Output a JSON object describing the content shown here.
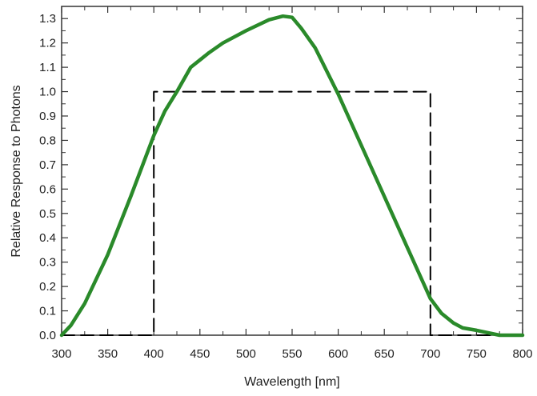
{
  "chart_data": {
    "type": "line",
    "title": "",
    "xlabel": "Wavelength [nm]",
    "ylabel": "Relative Response to Photons",
    "xlim": [
      300,
      800
    ],
    "ylim": [
      0,
      1.35
    ],
    "xticks": [
      300,
      350,
      400,
      450,
      500,
      550,
      600,
      650,
      700,
      750,
      800
    ],
    "xtick_labels": [
      "300",
      "350",
      "400",
      "450",
      "500",
      "550",
      "600",
      "650",
      "700",
      "750",
      "800"
    ],
    "yticks": [
      0,
      0.1,
      0.2,
      0.3,
      0.4,
      0.5,
      0.6,
      0.7,
      0.8,
      0.9,
      1.0,
      1.1,
      1.2,
      1.3
    ],
    "ytick_labels": [
      "0.0",
      "0.1",
      "0.2",
      "0.3",
      "0.4",
      "0.5",
      "0.6",
      "0.7",
      "0.8",
      "0.9",
      "1.0",
      "1.1",
      "1.2",
      "1.3"
    ],
    "grid": false,
    "series": [
      {
        "style": "solid",
        "color": "#2a8a2a",
        "x": [
          300,
          310,
          325,
          350,
          375,
          400,
          412,
          425,
          440,
          460,
          475,
          500,
          525,
          540,
          550,
          560,
          575,
          600,
          625,
          650,
          675,
          700,
          712,
          725,
          735,
          750,
          775,
          800
        ],
        "y": [
          0,
          0.04,
          0.13,
          0.33,
          0.57,
          0.82,
          0.92,
          1.0,
          1.1,
          1.16,
          1.2,
          1.25,
          1.295,
          1.31,
          1.305,
          1.26,
          1.18,
          0.99,
          0.78,
          0.57,
          0.36,
          0.15,
          0.09,
          0.05,
          0.03,
          0.02,
          0.0,
          0.0
        ]
      },
      {
        "style": "dashed",
        "color": "#000000",
        "x": [
          300,
          400,
          400,
          700,
          700,
          800
        ],
        "y": [
          0,
          0,
          1.0,
          1.0,
          0,
          0
        ]
      }
    ]
  }
}
